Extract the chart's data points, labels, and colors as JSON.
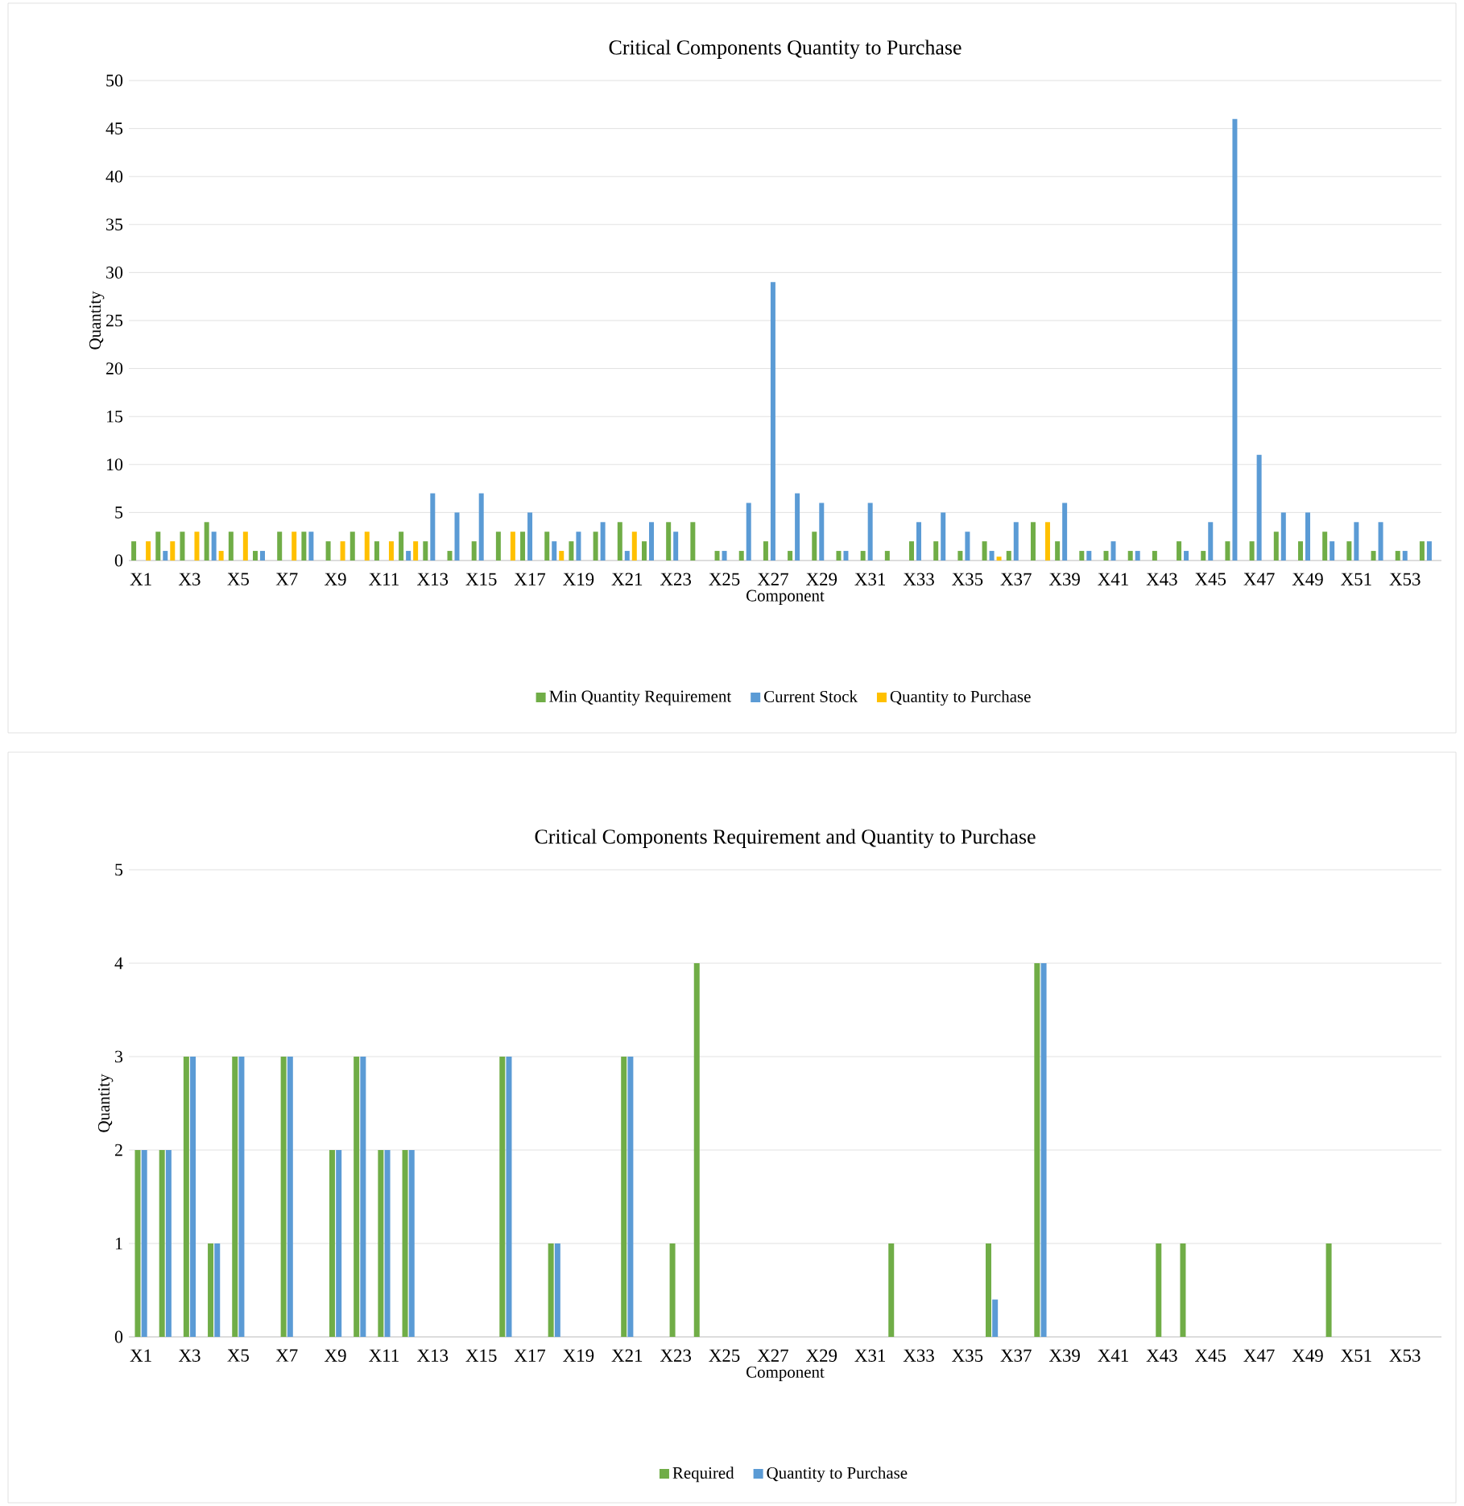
{
  "chart_data": [
    {
      "type": "bar",
      "title": "Critical Components  Quantity to Purchase",
      "xlabel": "Component",
      "ylabel": "Quantity",
      "categories": [
        "X1",
        null,
        "X3",
        null,
        "X5",
        null,
        "X7",
        null,
        "X9",
        null,
        "X11",
        null,
        "X13",
        null,
        "X15",
        null,
        "X17",
        null,
        "X19",
        null,
        "X21",
        null,
        "X23",
        null,
        "X25",
        null,
        "X27",
        null,
        "X29",
        null,
        "X31",
        null,
        "X33",
        null,
        "X35",
        null,
        "X37",
        null,
        "X39",
        null,
        "X41",
        null,
        "X43",
        null,
        "X45",
        null,
        "X47",
        null,
        "X49",
        null,
        "X51",
        null,
        "X53",
        null
      ],
      "series": [
        {
          "name": "Min Quantity Requirement",
          "color": "#70ad47",
          "values": [
            2,
            3,
            3,
            4,
            3,
            1,
            3,
            3,
            2,
            3,
            2,
            3,
            2,
            1,
            2,
            3,
            3,
            3,
            2,
            3,
            4,
            2,
            4,
            4,
            1,
            1,
            2,
            1,
            3,
            1,
            1,
            1,
            2,
            2,
            1,
            2,
            1,
            4,
            2,
            1,
            1,
            1,
            1,
            2,
            1,
            2,
            2,
            3,
            2,
            3,
            2,
            1,
            1,
            2
          ]
        },
        {
          "name": "Current Stock",
          "color": "#5b9bd5",
          "values": [
            0,
            1,
            0,
            3,
            0,
            1,
            0,
            3,
            0,
            0,
            0,
            1,
            7,
            5,
            7,
            0,
            5,
            2,
            3,
            4,
            1,
            4,
            3,
            0,
            1,
            6,
            29,
            7,
            6,
            1,
            6,
            0,
            4,
            5,
            3,
            1,
            4,
            0,
            6,
            1,
            2,
            1,
            0,
            1,
            4,
            46,
            11,
            5,
            5,
            2,
            4,
            4,
            1,
            2
          ]
        },
        {
          "name": "Quantity to Purchase",
          "color": "#ffc000",
          "values": [
            2,
            2,
            3,
            1,
            3,
            0,
            3,
            0,
            2,
            3,
            2,
            2,
            0,
            0,
            0,
            3,
            0,
            1,
            0,
            0,
            3,
            0,
            0,
            0,
            0,
            0,
            0,
            0,
            0,
            0,
            0,
            0,
            0,
            0,
            0,
            0.4,
            0,
            4,
            0,
            0,
            0,
            0,
            0,
            0,
            0,
            0,
            0,
            0,
            0,
            0,
            0,
            0,
            0,
            0
          ]
        }
      ],
      "ylim": [
        0,
        50
      ],
      "yticks": [
        0,
        5,
        10,
        15,
        20,
        25,
        30,
        35,
        40,
        45,
        50
      ],
      "grid": "y",
      "legend": "bottom"
    },
    {
      "type": "bar",
      "title": "Critical Components  Requirement and Quantity to Purchase",
      "xlabel": "Component",
      "ylabel": "Quantity",
      "categories": [
        "X1",
        null,
        "X3",
        null,
        "X5",
        null,
        "X7",
        null,
        "X9",
        null,
        "X11",
        null,
        "X13",
        null,
        "X15",
        null,
        "X17",
        null,
        "X19",
        null,
        "X21",
        null,
        "X23",
        null,
        "X25",
        null,
        "X27",
        null,
        "X29",
        null,
        "X31",
        null,
        "X33",
        null,
        "X35",
        null,
        "X37",
        null,
        "X39",
        null,
        "X41",
        null,
        "X43",
        null,
        "X45",
        null,
        "X47",
        null,
        "X49",
        null,
        "X51",
        null,
        "X53",
        null
      ],
      "series": [
        {
          "name": "Required",
          "color": "#70ad47",
          "values": [
            2,
            2,
            3,
            1,
            3,
            0,
            3,
            0,
            2,
            3,
            2,
            2,
            0,
            0,
            0,
            3,
            0,
            1,
            0,
            0,
            3,
            0,
            1,
            4,
            0,
            0,
            0,
            0,
            0,
            0,
            0,
            1,
            0,
            0,
            0,
            1,
            0,
            4,
            0,
            0,
            0,
            0,
            1,
            1,
            0,
            0,
            0,
            0,
            0,
            1,
            0,
            0,
            0,
            0
          ]
        },
        {
          "name": "Quantity to Purchase",
          "color": "#5b9bd5",
          "values": [
            2,
            2,
            3,
            1,
            3,
            0,
            3,
            0,
            2,
            3,
            2,
            2,
            0,
            0,
            0,
            3,
            0,
            1,
            0,
            0,
            3,
            0,
            0,
            0,
            0,
            0,
            0,
            0,
            0,
            0,
            0,
            0,
            0,
            0,
            0,
            0.4,
            0,
            4,
            0,
            0,
            0,
            0,
            0,
            0,
            0,
            0,
            0,
            0,
            0,
            0,
            0,
            0,
            0,
            0
          ]
        }
      ],
      "ylim": [
        0,
        5
      ],
      "yticks": [
        0,
        1,
        2,
        3,
        4,
        5
      ],
      "grid": "y",
      "legend": "bottom"
    }
  ]
}
